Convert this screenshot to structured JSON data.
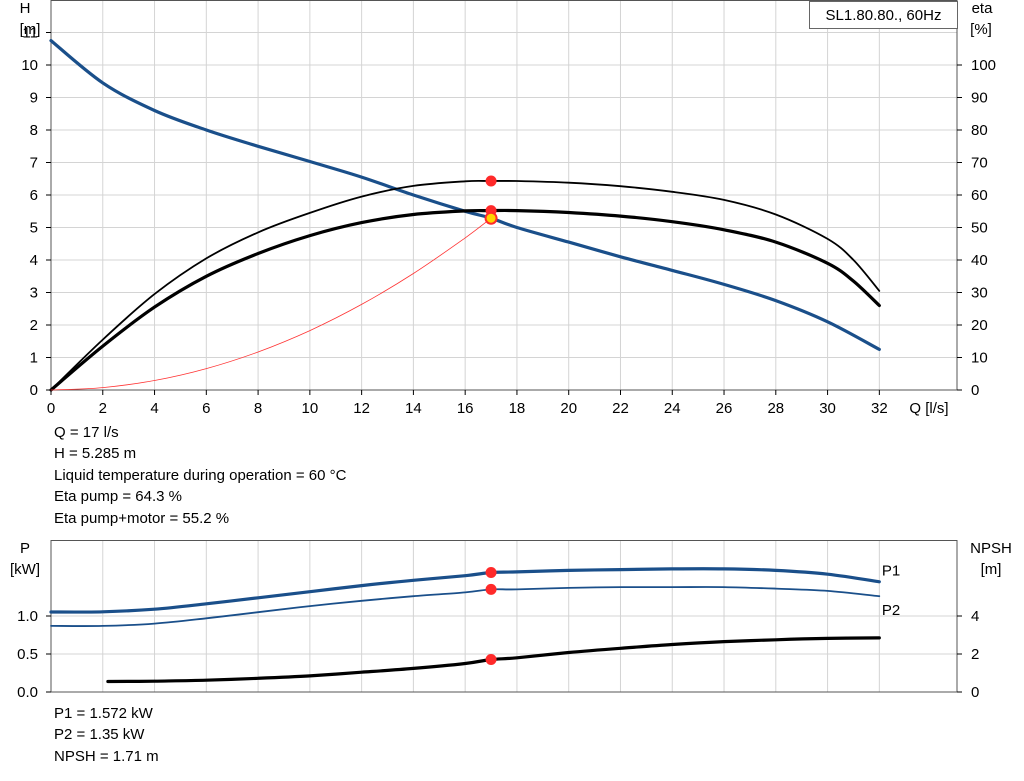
{
  "chart_data": [
    {
      "type": "line",
      "title": "SL1.80.80., 60Hz",
      "xlabel": "Q [l/s]",
      "ylabel": "H [m]",
      "y2label": "eta [%]",
      "xlim": [
        0,
        35
      ],
      "ylim": [
        0,
        12
      ],
      "y2lim": [
        0,
        120
      ],
      "x_ticks": [
        0,
        2,
        4,
        6,
        8,
        10,
        12,
        14,
        16,
        18,
        20,
        22,
        24,
        26,
        28,
        30,
        32
      ],
      "y_ticks": [
        0,
        1,
        2,
        3,
        4,
        5,
        6,
        7,
        8,
        9,
        10,
        11
      ],
      "y2_ticks": [
        0,
        10,
        20,
        30,
        40,
        50,
        60,
        70,
        80,
        90,
        100
      ],
      "grid": true,
      "series": [
        {
          "axis": "left",
          "color": "#1a4f8a",
          "width": 3.2,
          "points": [
            [
              0,
              10.75
            ],
            [
              2,
              9.45
            ],
            [
              4,
              8.6
            ],
            [
              6,
              8.0
            ],
            [
              8,
              7.5
            ],
            [
              10,
              7.03
            ],
            [
              12,
              6.55
            ],
            [
              14,
              6.0
            ],
            [
              16,
              5.5
            ],
            [
              17,
              5.285
            ],
            [
              18,
              5.0
            ],
            [
              20,
              4.55
            ],
            [
              22,
              4.1
            ],
            [
              24,
              3.68
            ],
            [
              26,
              3.25
            ],
            [
              28,
              2.75
            ],
            [
              30,
              2.1
            ],
            [
              32,
              1.25
            ]
          ]
        },
        {
          "axis": "right",
          "color": "#000000",
          "width": 1.8,
          "points": [
            [
              0,
              0
            ],
            [
              2,
              15.5
            ],
            [
              4,
              29.5
            ],
            [
              6,
              40.5
            ],
            [
              8,
              48.5
            ],
            [
              10,
              54.5
            ],
            [
              12,
              59.5
            ],
            [
              14,
              62.8
            ],
            [
              16,
              64.2
            ],
            [
              17,
              64.3
            ],
            [
              18,
              64.3
            ],
            [
              20,
              63.8
            ],
            [
              22,
              62.7
            ],
            [
              24,
              61.0
            ],
            [
              26,
              58.5
            ],
            [
              28,
              54.0
            ],
            [
              30,
              46.5
            ],
            [
              31,
              40.0
            ],
            [
              32,
              30.5
            ]
          ]
        },
        {
          "axis": "right",
          "color": "#000000",
          "width": 3.2,
          "points": [
            [
              0,
              0
            ],
            [
              2,
              13.5
            ],
            [
              4,
              25.5
            ],
            [
              6,
              35.0
            ],
            [
              8,
              42.0
            ],
            [
              10,
              47.5
            ],
            [
              12,
              51.5
            ],
            [
              14,
              54.0
            ],
            [
              16,
              55.1
            ],
            [
              17,
              55.2
            ],
            [
              18,
              55.2
            ],
            [
              20,
              54.6
            ],
            [
              22,
              53.5
            ],
            [
              24,
              51.8
            ],
            [
              26,
              49.3
            ],
            [
              28,
              45.5
            ],
            [
              30,
              39.0
            ],
            [
              31,
              33.5
            ],
            [
              32,
              26.0
            ]
          ]
        },
        {
          "axis": "left",
          "color": "#ff3333",
          "width": 0.8,
          "points": [
            [
              0,
              0
            ],
            [
              2,
              0.073
            ],
            [
              4,
              0.293
            ],
            [
              6,
              0.658
            ],
            [
              8,
              1.17
            ],
            [
              10,
              1.829
            ],
            [
              12,
              2.633
            ],
            [
              14,
              3.584
            ],
            [
              16,
              4.681
            ],
            [
              17,
              5.285
            ]
          ]
        }
      ],
      "markers": [
        {
          "axis": "right",
          "x": 17,
          "y": 64.3,
          "color": "#ff2a2a"
        },
        {
          "axis": "right",
          "x": 17,
          "y": 55.2,
          "color": "#ff2a2a"
        },
        {
          "axis": "left",
          "x": 17,
          "y": 5.285,
          "color": "#ffd400"
        }
      ]
    },
    {
      "type": "line",
      "ylabel": "P [kW]",
      "y2label": "NPSH [m]",
      "xlim": [
        0,
        35
      ],
      "ylim": [
        0,
        2.0
      ],
      "y2lim": [
        0,
        8
      ],
      "y_ticks": [
        0.0,
        0.5,
        1.0
      ],
      "y_tick_labels": [
        "0.0",
        "0.5",
        "1.0"
      ],
      "y2_ticks": [
        0,
        2,
        4
      ],
      "grid": true,
      "series": [
        {
          "name": "P1",
          "axis": "left",
          "color": "#1a4f8a",
          "width": 3.2,
          "points": [
            [
              0,
              1.052
            ],
            [
              2,
              1.055
            ],
            [
              4,
              1.09
            ],
            [
              6,
              1.16
            ],
            [
              8,
              1.24
            ],
            [
              10,
              1.32
            ],
            [
              12,
              1.4
            ],
            [
              14,
              1.47
            ],
            [
              16,
              1.53
            ],
            [
              17,
              1.572
            ],
            [
              18,
              1.58
            ],
            [
              20,
              1.6
            ],
            [
              22,
              1.61
            ],
            [
              24,
              1.62
            ],
            [
              26,
              1.62
            ],
            [
              28,
              1.6
            ],
            [
              30,
              1.55
            ],
            [
              32,
              1.45
            ]
          ]
        },
        {
          "name": "P2",
          "axis": "left",
          "color": "#1a4f8a",
          "width": 1.8,
          "points": [
            [
              0,
              0.87
            ],
            [
              2,
              0.87
            ],
            [
              4,
              0.9
            ],
            [
              6,
              0.97
            ],
            [
              8,
              1.05
            ],
            [
              10,
              1.13
            ],
            [
              12,
              1.2
            ],
            [
              14,
              1.26
            ],
            [
              16,
              1.31
            ],
            [
              17,
              1.35
            ],
            [
              18,
              1.35
            ],
            [
              20,
              1.37
            ],
            [
              22,
              1.38
            ],
            [
              24,
              1.38
            ],
            [
              26,
              1.38
            ],
            [
              28,
              1.36
            ],
            [
              30,
              1.33
            ],
            [
              32,
              1.26
            ]
          ]
        },
        {
          "name": "NPSH",
          "axis": "right",
          "color": "#000000",
          "width": 3.2,
          "points": [
            [
              2.2,
              0.55
            ],
            [
              4,
              0.57
            ],
            [
              6,
              0.62
            ],
            [
              8,
              0.72
            ],
            [
              10,
              0.85
            ],
            [
              12,
              1.04
            ],
            [
              14,
              1.24
            ],
            [
              16,
              1.5
            ],
            [
              17,
              1.71
            ],
            [
              18,
              1.8
            ],
            [
              20,
              2.08
            ],
            [
              22,
              2.3
            ],
            [
              24,
              2.5
            ],
            [
              26,
              2.65
            ],
            [
              28,
              2.75
            ],
            [
              30,
              2.82
            ],
            [
              32,
              2.85
            ]
          ]
        }
      ],
      "series_labels": [
        {
          "text": "P1",
          "axis": "left",
          "x": 32.1,
          "y": 1.6,
          "color": "#1a4f8a"
        },
        {
          "text": "P2",
          "axis": "left",
          "x": 32.1,
          "y": 1.08,
          "color": "#1a4f8a"
        }
      ],
      "markers": [
        {
          "axis": "left",
          "x": 17,
          "y": 1.572,
          "color": "#ff2a2a"
        },
        {
          "axis": "left",
          "x": 17,
          "y": 1.35,
          "color": "#ff2a2a"
        },
        {
          "axis": "right",
          "x": 17,
          "y": 1.71,
          "color": "#ff2a2a"
        }
      ]
    }
  ],
  "info_top": {
    "q": "Q = 17 l/s",
    "h": "H = 5.285 m",
    "temp": "Liquid temperature during operation = 60 °C",
    "eta_pump": "Eta pump = 64.3 %",
    "eta_total": "Eta pump+motor = 55.2 %"
  },
  "info_bottom": {
    "p1": "P1 = 1.572 kW",
    "p2": "P2 = 1.35 kW",
    "npsh": "NPSH = 1.71 m"
  }
}
